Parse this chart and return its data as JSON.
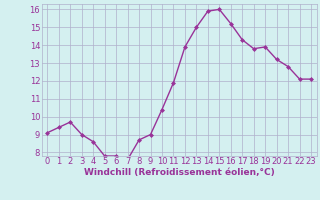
{
  "x": [
    0,
    1,
    2,
    3,
    4,
    5,
    6,
    7,
    8,
    9,
    10,
    11,
    12,
    13,
    14,
    15,
    16,
    17,
    18,
    19,
    20,
    21,
    22,
    23
  ],
  "y": [
    9.1,
    9.4,
    9.7,
    9.0,
    8.6,
    7.8,
    7.8,
    7.6,
    8.7,
    9.0,
    10.4,
    11.9,
    13.9,
    15.0,
    15.9,
    16.0,
    15.2,
    14.3,
    13.8,
    13.9,
    13.2,
    12.8,
    12.1,
    12.1
  ],
  "line_color": "#993399",
  "marker": "D",
  "marker_size": 2,
  "bg_color": "#d4f0f0",
  "grid_color": "#b0b0cc",
  "xlabel": "Windchill (Refroidissement éolien,°C)",
  "xlabel_color": "#993399",
  "tick_color": "#993399",
  "label_color": "#993399",
  "ylim_min": 7.8,
  "ylim_max": 16.3,
  "xlim_min": -0.5,
  "xlim_max": 23.5,
  "yticks": [
    8,
    9,
    10,
    11,
    12,
    13,
    14,
    15,
    16
  ],
  "xticks": [
    0,
    1,
    2,
    3,
    4,
    5,
    6,
    7,
    8,
    9,
    10,
    11,
    12,
    13,
    14,
    15,
    16,
    17,
    18,
    19,
    20,
    21,
    22,
    23
  ],
  "tick_fontsize": 6,
  "xlabel_fontsize": 6.5,
  "linewidth": 1.0
}
